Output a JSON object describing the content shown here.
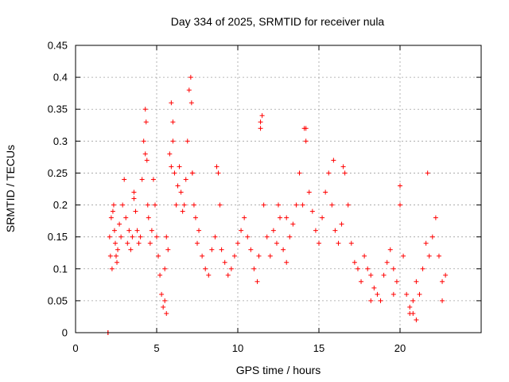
{
  "chart_data": {
    "type": "scatter",
    "title": "Day 334 of 2025, SRMTID for receiver nula",
    "xlabel": "GPS time / hours",
    "ylabel": "SRMTID / TECUs",
    "xlim": [
      0,
      25
    ],
    "ylim": [
      0,
      0.45
    ],
    "xticks": [
      0,
      5,
      10,
      15,
      20
    ],
    "yticks": [
      0,
      0.05,
      0.1,
      0.15,
      0.2,
      0.25,
      0.3,
      0.35,
      0.4,
      0.45
    ],
    "grid": true,
    "marker": "+",
    "color": "#ff0000",
    "series": [
      {
        "name": "SRMTID",
        "x": [
          2.0,
          2.0,
          2.1,
          2.15,
          2.2,
          2.25,
          2.3,
          2.35,
          2.4,
          2.45,
          2.5,
          2.55,
          2.6,
          2.7,
          2.8,
          2.9,
          3.0,
          3.1,
          3.2,
          3.3,
          3.4,
          3.5,
          3.6,
          3.7,
          3.8,
          3.9,
          4.0,
          4.1,
          4.2,
          4.3,
          4.35,
          4.4,
          4.45,
          4.5,
          4.6,
          4.7,
          4.8,
          4.9,
          5.0,
          5.1,
          5.2,
          5.3,
          5.4,
          5.5,
          5.6,
          5.7,
          5.8,
          5.9,
          6.0,
          6.1,
          6.2,
          6.3,
          6.4,
          6.5,
          6.6,
          6.7,
          6.8,
          6.9,
          7.0,
          7.1,
          7.15,
          7.2,
          7.3,
          7.4,
          7.5,
          7.6,
          7.8,
          8.0,
          8.2,
          8.4,
          8.6,
          8.8,
          8.9,
          9.0,
          9.2,
          9.4,
          9.6,
          9.8,
          10.0,
          10.2,
          10.4,
          10.6,
          10.8,
          11.0,
          11.2,
          11.3,
          11.4,
          11.6,
          11.8,
          12.0,
          12.2,
          12.4,
          12.6,
          12.8,
          13.0,
          13.2,
          13.4,
          13.6,
          13.8,
          14.0,
          14.1,
          14.2,
          14.4,
          14.6,
          14.8,
          15.0,
          15.2,
          15.4,
          15.6,
          15.8,
          16.0,
          16.2,
          16.4,
          16.6,
          16.8,
          17.0,
          17.2,
          17.4,
          17.6,
          17.8,
          18.0,
          18.2,
          18.4,
          18.6,
          18.8,
          19.0,
          19.2,
          19.4,
          19.6,
          19.8,
          20.0,
          20.2,
          20.4,
          20.6,
          20.8,
          21.0,
          21.2,
          21.4,
          21.6,
          21.8,
          22.0,
          22.2,
          22.4,
          22.6,
          22.8,
          3.6,
          4.3,
          5.9,
          6.0,
          7.2,
          11.4,
          11.5,
          14.2,
          15.9,
          16.5,
          20.0,
          21.7,
          5.6,
          5.5,
          8.7,
          12.5,
          13.0,
          18.2,
          19.6,
          20.6,
          20.8,
          21.0,
          22.6
        ],
        "y": [
          0.0,
          0.0,
          0.15,
          0.12,
          0.18,
          0.1,
          0.19,
          0.2,
          0.16,
          0.14,
          0.12,
          0.11,
          0.13,
          0.17,
          0.15,
          0.2,
          0.24,
          0.18,
          0.14,
          0.16,
          0.13,
          0.15,
          0.22,
          0.19,
          0.16,
          0.14,
          0.15,
          0.24,
          0.3,
          0.35,
          0.33,
          0.27,
          0.2,
          0.18,
          0.14,
          0.16,
          0.24,
          0.2,
          0.15,
          0.12,
          0.09,
          0.06,
          0.04,
          0.1,
          0.15,
          0.13,
          0.28,
          0.36,
          0.33,
          0.25,
          0.2,
          0.23,
          0.26,
          0.22,
          0.19,
          0.2,
          0.24,
          0.3,
          0.38,
          0.4,
          0.36,
          0.25,
          0.2,
          0.18,
          0.14,
          0.16,
          0.12,
          0.1,
          0.09,
          0.13,
          0.15,
          0.25,
          0.2,
          0.13,
          0.11,
          0.09,
          0.1,
          0.12,
          0.14,
          0.16,
          0.18,
          0.15,
          0.13,
          0.1,
          0.08,
          0.12,
          0.33,
          0.2,
          0.15,
          0.12,
          0.16,
          0.14,
          0.18,
          0.13,
          0.11,
          0.15,
          0.17,
          0.2,
          0.25,
          0.2,
          0.32,
          0.3,
          0.22,
          0.19,
          0.16,
          0.14,
          0.18,
          0.22,
          0.25,
          0.2,
          0.16,
          0.14,
          0.17,
          0.25,
          0.2,
          0.14,
          0.11,
          0.1,
          0.08,
          0.12,
          0.1,
          0.09,
          0.07,
          0.06,
          0.05,
          0.09,
          0.11,
          0.13,
          0.1,
          0.08,
          0.23,
          0.12,
          0.06,
          0.04,
          0.05,
          0.08,
          0.06,
          0.1,
          0.14,
          0.12,
          0.15,
          0.18,
          0.12,
          0.08,
          0.09,
          0.21,
          0.28,
          0.26,
          0.3,
          0.25,
          0.32,
          0.34,
          0.32,
          0.27,
          0.26,
          0.2,
          0.25,
          0.03,
          0.05,
          0.26,
          0.2,
          0.18,
          0.05,
          0.06,
          0.03,
          0.03,
          0.02,
          0.05
        ]
      }
    ]
  }
}
